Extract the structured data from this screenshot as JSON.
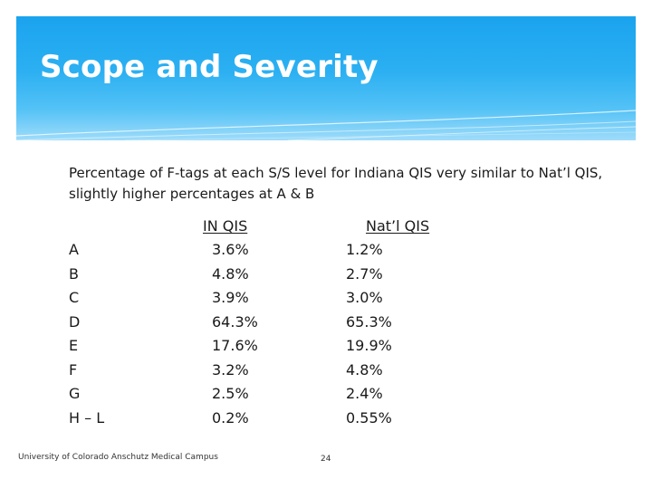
{
  "slide": {
    "title": "Scope and Severity",
    "subtitle": "Percentage of F-tags at each S/S level for Indiana QIS very similar to Nat’l QIS, slightly higher percentages at A & B",
    "table": {
      "headers": {
        "in": "IN QIS",
        "natl": "Nat’l QIS"
      },
      "rows": [
        {
          "level": "A",
          "in": "3.6%",
          "natl": "1.2%"
        },
        {
          "level": "B",
          "in": "4.8%",
          "natl": "2.7%"
        },
        {
          "level": "C",
          "in": "3.9%",
          "natl": "3.0%"
        },
        {
          "level": "D",
          "in": "64.3%",
          "natl": "65.3%"
        },
        {
          "level": "E",
          "in": "17.6%",
          "natl": "19.9%"
        },
        {
          "level": "F",
          "in": "3.2%",
          "natl": "4.8%"
        },
        {
          "level": "G",
          "in": "2.5%",
          "natl": "2.4%"
        },
        {
          "level": "H – L",
          "in": "0.2%",
          "natl": "0.55%"
        }
      ]
    },
    "footer": {
      "institution": "University of Colorado Anschutz Medical Campus",
      "page_number": "24"
    }
  },
  "colors": {
    "header_top": "#1aa3ee",
    "header_bottom": "#9fdcfa",
    "text": "#1a1a1a"
  }
}
